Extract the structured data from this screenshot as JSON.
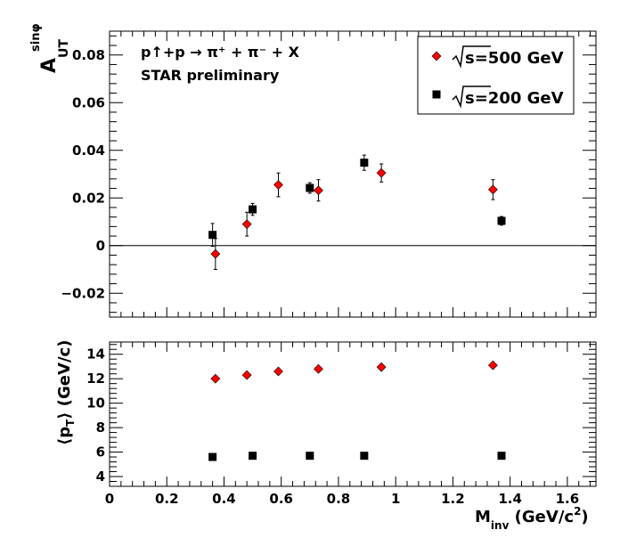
{
  "chart_data": [
    {
      "type": "scatter",
      "panel": "top",
      "title_line1": "p↑+p → π⁺ + π⁻ + X",
      "title_line2": "STAR preliminary",
      "ylabel": "A_UT^sinφ",
      "ylabel_main": "A",
      "ylabel_sub": "UT",
      "ylabel_sup": "sinφ",
      "xlim": [
        0,
        1.7
      ],
      "ylim": [
        -0.03,
        0.09
      ],
      "yticks": [
        -0.02,
        0,
        0.02,
        0.04,
        0.06,
        0.08
      ],
      "ytick_labels": [
        "−0.02",
        "0",
        "0.02",
        "0.04",
        "0.06",
        "0.08"
      ],
      "zero_line": true,
      "legend_placement": "top-right",
      "series": [
        {
          "name": "√s=500 GeV",
          "legend_text": "s=500 GeV",
          "marker": "diamond",
          "color": "#ff0000",
          "x": [
            0.37,
            0.48,
            0.59,
            0.73,
            0.95,
            1.34
          ],
          "y": [
            -0.0035,
            0.009,
            0.0255,
            0.0232,
            0.0305,
            0.0235
          ],
          "err": [
            0.0065,
            0.005,
            0.005,
            0.0045,
            0.0038,
            0.0042
          ]
        },
        {
          "name": "√s=200 GeV",
          "legend_text": "s=200 GeV",
          "marker": "square",
          "color": "#000000",
          "x": [
            0.36,
            0.5,
            0.7,
            0.89,
            1.37
          ],
          "y": [
            0.0045,
            0.0152,
            0.0242,
            0.0348,
            0.0104
          ],
          "err": [
            0.0048,
            0.0025,
            0.0022,
            0.0032,
            0.0018
          ]
        }
      ]
    },
    {
      "type": "scatter",
      "panel": "bottom",
      "ylabel": "⟨pT⟩ (GeV/c)",
      "ylabel_pre": "⟨p",
      "ylabel_sub": "T",
      "ylabel_post": "⟩ (GeV/c)",
      "xlabel": "M_inv (GeV/c²)",
      "xlabel_main": "M",
      "xlabel_sub": "inv",
      "xlabel_post": " (GeV/c",
      "xlabel_sup": "2",
      "xlabel_close": ")",
      "xlim": [
        0,
        1.7
      ],
      "ylim": [
        3.2,
        15
      ],
      "yticks": [
        4,
        6,
        8,
        10,
        12,
        14
      ],
      "ytick_labels": [
        "4",
        "6",
        "8",
        "10",
        "12",
        "14"
      ],
      "xticks": [
        0,
        0.2,
        0.4,
        0.6,
        0.8,
        1.0,
        1.2,
        1.4,
        1.6
      ],
      "xtick_labels": [
        "0",
        "0.2",
        "0.4",
        "0.6",
        "0.8",
        "1",
        "1.2",
        "1.4",
        "1.6"
      ],
      "series": [
        {
          "name": "√s=500 GeV",
          "marker": "diamond",
          "color": "#ff0000",
          "x": [
            0.37,
            0.48,
            0.59,
            0.73,
            0.95,
            1.34
          ],
          "y": [
            12.0,
            12.3,
            12.6,
            12.8,
            12.95,
            13.1
          ]
        },
        {
          "name": "√s=200 GeV",
          "marker": "square",
          "color": "#000000",
          "x": [
            0.36,
            0.5,
            0.7,
            0.89,
            1.37
          ],
          "y": [
            5.6,
            5.7,
            5.7,
            5.7,
            5.7
          ]
        }
      ]
    }
  ]
}
